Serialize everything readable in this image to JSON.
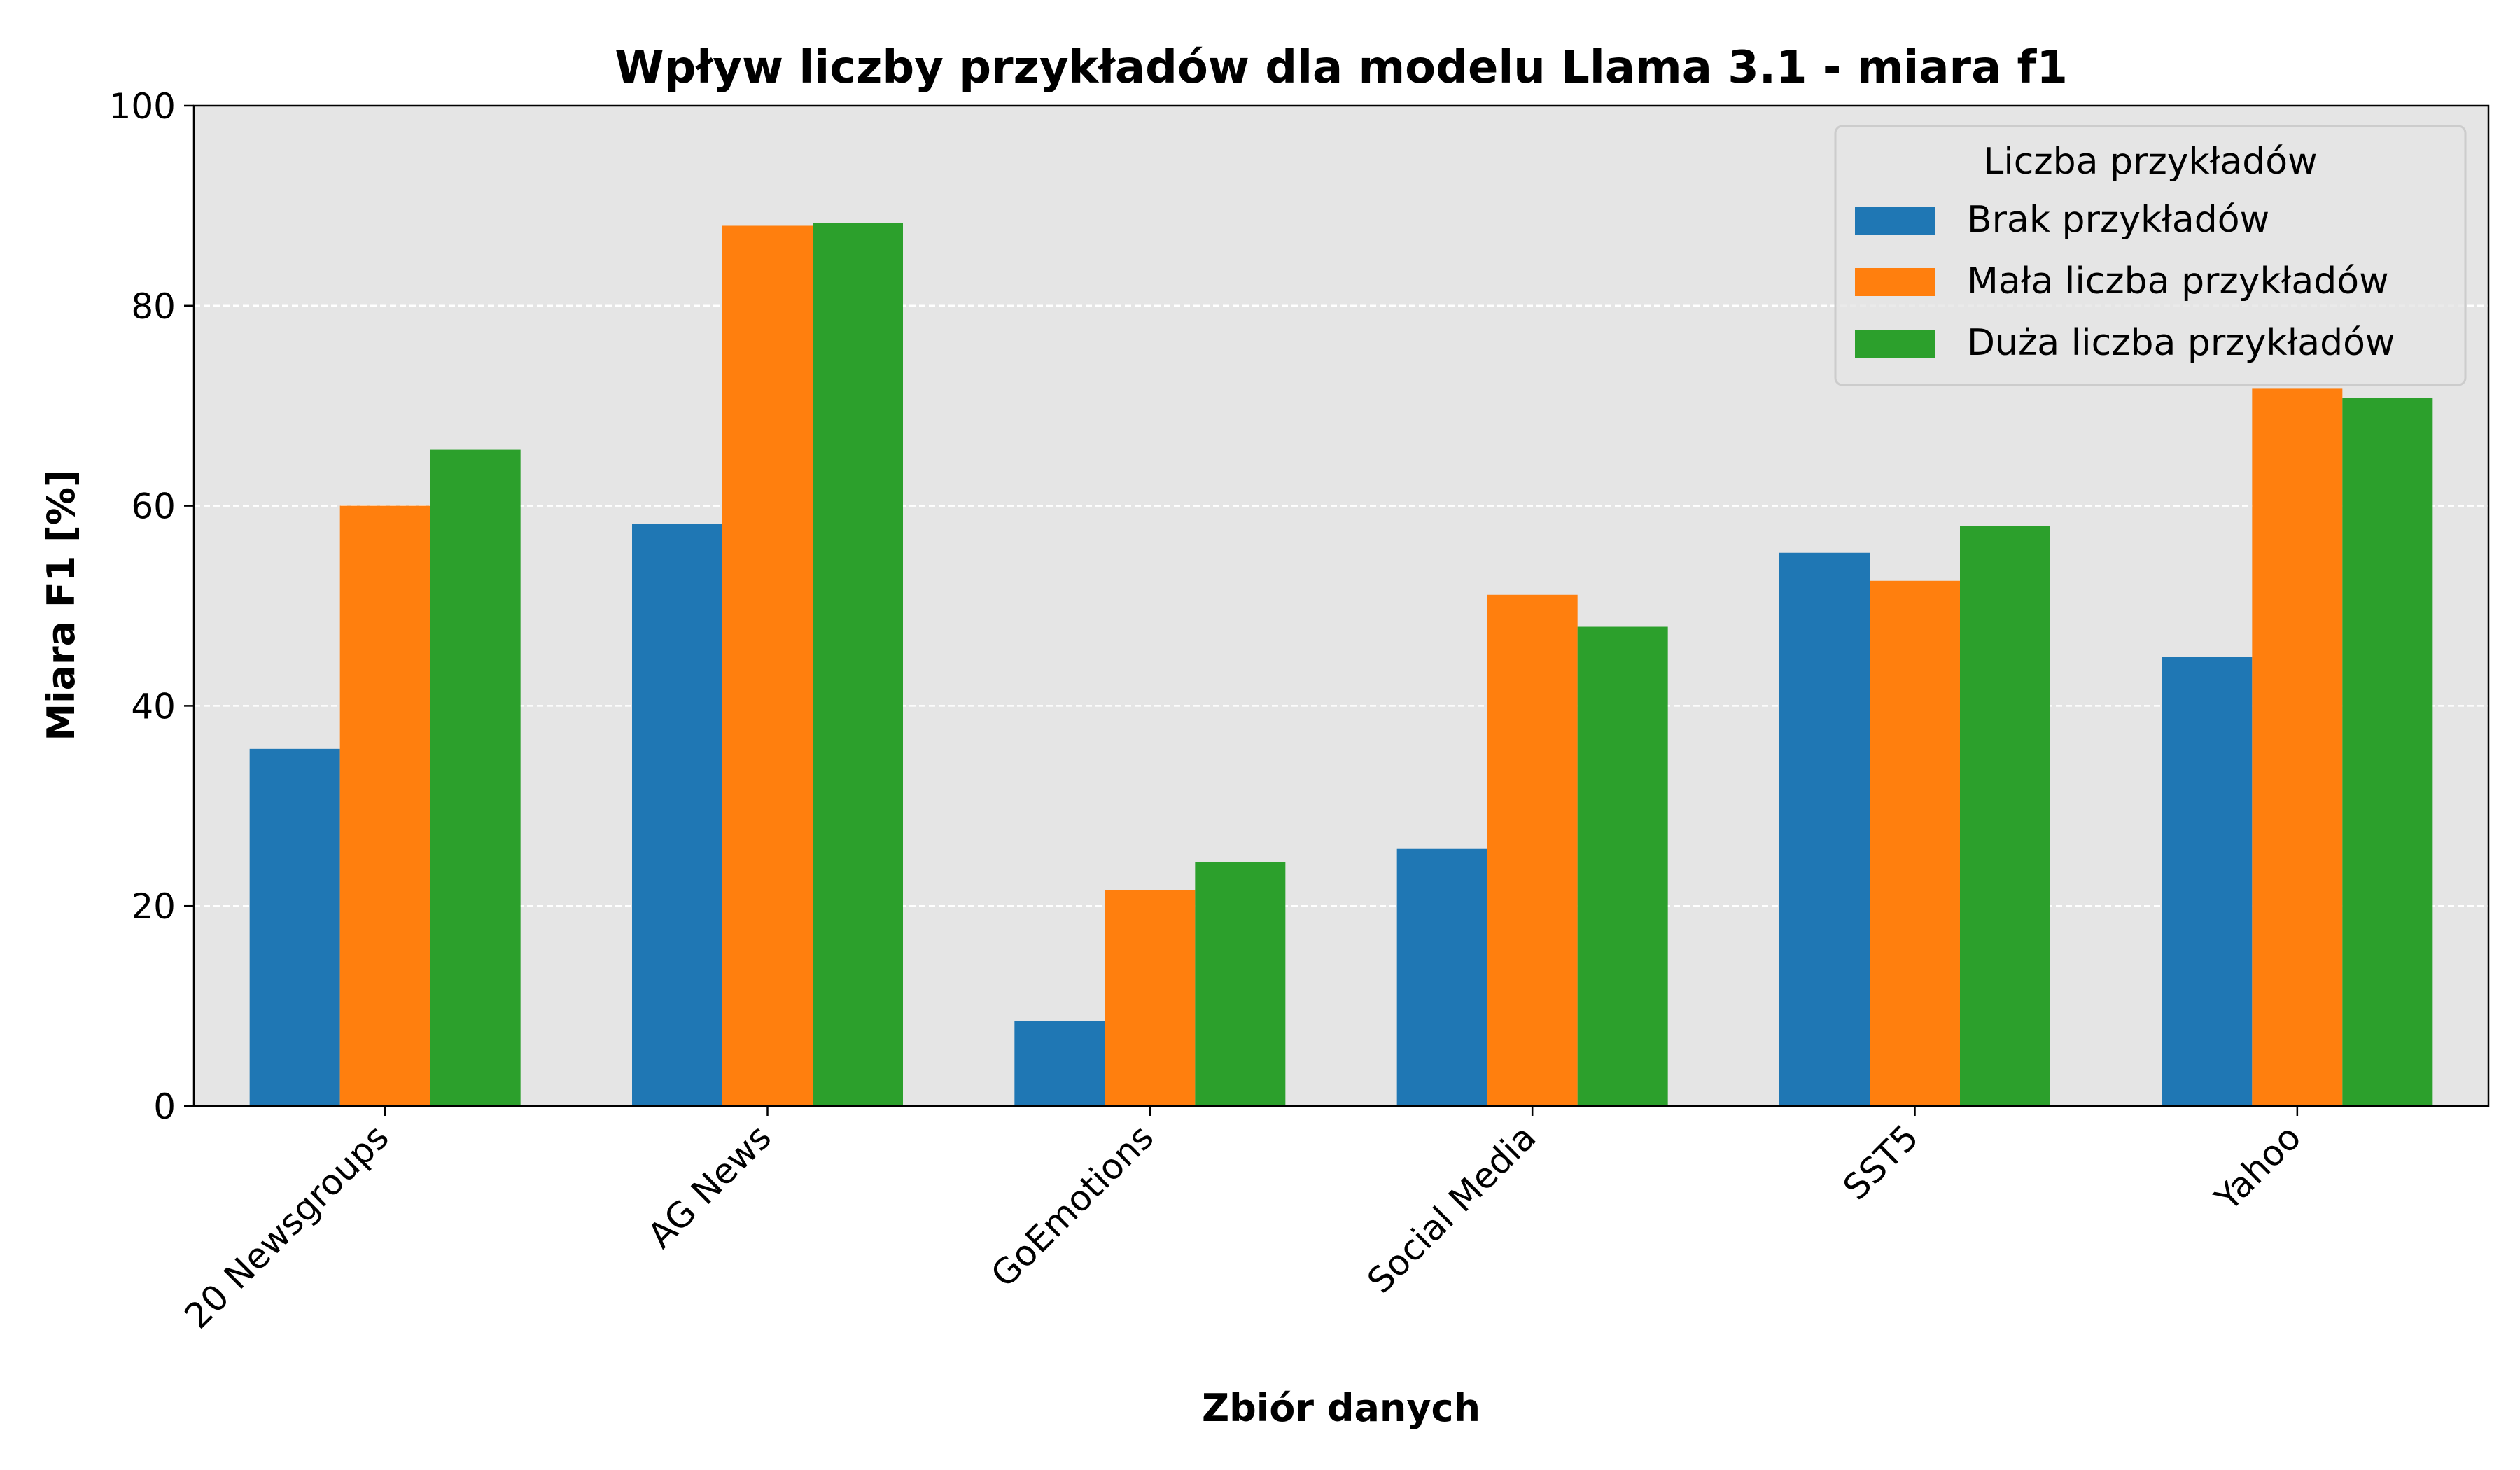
{
  "chart_data": {
    "type": "bar",
    "title": "Wpływ liczby przykładów  dla modelu Llama 3.1 - miara f1",
    "xlabel": "Zbiór danych",
    "ylabel": "Miara F1 [%]",
    "ylim": [
      0,
      100
    ],
    "yticks": [
      "0",
      "20",
      "40",
      "60",
      "80",
      "100"
    ],
    "grid": "y-dashed",
    "legend_position": "top-right",
    "legend_title": "Liczba przykładów",
    "categories": [
      "20 Newsgroups",
      "AG News",
      "GoEmotions",
      "Social Media",
      "SST5",
      "Yahoo"
    ],
    "series": [
      {
        "name": "Brak przykładów",
        "color": "#1f77b4",
        "values": [
          35.7,
          58.2,
          8.5,
          25.7,
          55.3,
          44.9
        ]
      },
      {
        "name": "Mała liczba przykładów",
        "color": "#ff7f0e",
        "values": [
          60.0,
          88.0,
          21.6,
          51.1,
          52.5,
          71.7
        ]
      },
      {
        "name": "Duża liczba przykładów",
        "color": "#2ca02c",
        "values": [
          65.6,
          88.3,
          24.4,
          47.9,
          58.0,
          70.8
        ]
      }
    ]
  }
}
